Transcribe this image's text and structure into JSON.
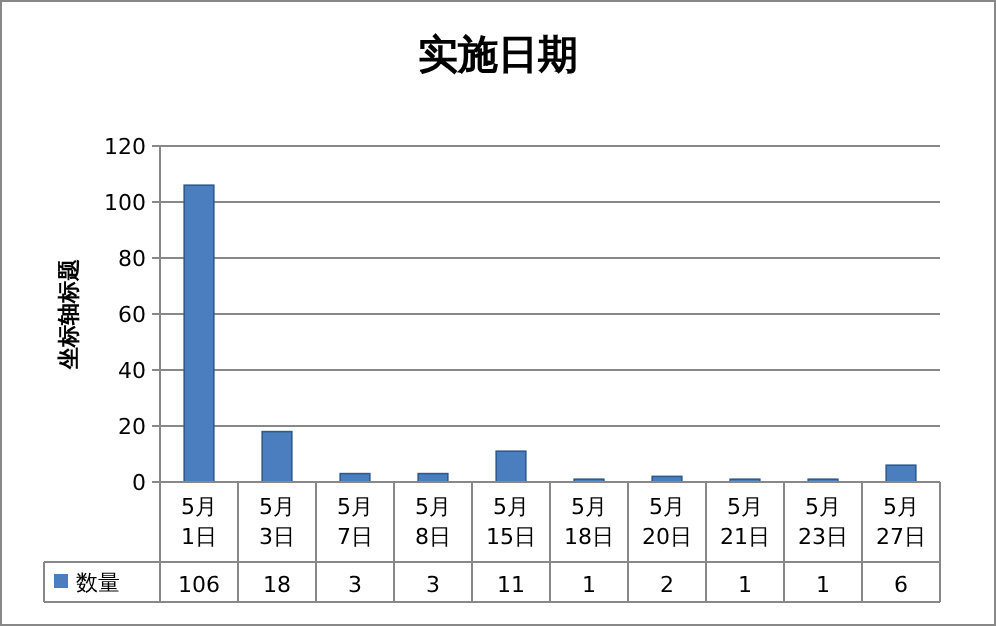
{
  "chart_data": {
    "type": "bar",
    "title": "实施日期",
    "ylabel": "坐标轴标题",
    "categories": [
      "5月1日",
      "5月3日",
      "5月7日",
      "5月8日",
      "5月15日",
      "5月18日",
      "5月20日",
      "5月21日",
      "5月23日",
      "5月27日"
    ],
    "series": [
      {
        "name": "数量",
        "color": "#4a7ebf",
        "values": [
          106,
          18,
          3,
          3,
          11,
          1,
          2,
          1,
          1,
          6
        ]
      }
    ],
    "ylim": [
      0,
      120
    ],
    "yticks": [
      0,
      20,
      40,
      60,
      80,
      100,
      120
    ],
    "grid": "y",
    "legend": "bottom left",
    "data_labels": true
  }
}
